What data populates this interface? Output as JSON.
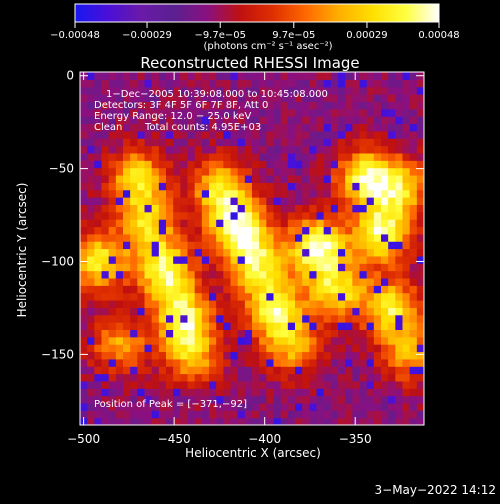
{
  "colorbar": {
    "tick_labels": [
      "−0.00048",
      "−0.00029",
      "−9.7e−05",
      "9.7e−05",
      "0.00029",
      "0.00048"
    ],
    "tick_values": [
      -0.00048,
      -0.00029,
      -9.7e-05,
      9.7e-05,
      0.00029,
      0.00048
    ],
    "range": [
      -0.00048,
      0.00048
    ],
    "unit_label": "(photons cm⁻² s⁻¹ asec⁻²)",
    "palette": [
      "#1818f0",
      "#4a10d8",
      "#6a1aa8",
      "#5a2090",
      "#8a1080",
      "#c01010",
      "#e03000",
      "#ff6a00",
      "#ffb000",
      "#ffe000",
      "#ffff40",
      "#ffffff"
    ]
  },
  "chart_data": {
    "type": "heatmap",
    "title": "Reconstructed RHESSI Image",
    "xlabel": "Heliocentric X (arcsec)",
    "ylabel": "Heliocentric Y (arcsec)",
    "xlim": [
      -502,
      -312
    ],
    "ylim": [
      -188,
      2
    ],
    "x_ticks": [
      -500,
      -450,
      -400,
      -350
    ],
    "x_tick_labels": [
      "−500",
      "−450",
      "−400",
      "−350"
    ],
    "y_ticks": [
      0,
      -50,
      -100,
      -150
    ],
    "y_tick_labels": [
      "0",
      "−50",
      "−100",
      "−150"
    ],
    "peak": [
      -371,
      -92
    ],
    "bright_regions": [
      {
        "x": -492,
        "y": -100,
        "level": 0.8
      },
      {
        "x": -480,
        "y": -145,
        "level": 0.55
      },
      {
        "x": -470,
        "y": -55,
        "level": 0.75
      },
      {
        "x": -465,
        "y": -80,
        "level": 0.7
      },
      {
        "x": -455,
        "y": -105,
        "level": 0.9
      },
      {
        "x": -445,
        "y": -130,
        "level": 0.85
      },
      {
        "x": -440,
        "y": -150,
        "level": 0.6
      },
      {
        "x": -425,
        "y": -60,
        "level": 0.7
      },
      {
        "x": -415,
        "y": -80,
        "level": 0.95
      },
      {
        "x": -405,
        "y": -100,
        "level": 0.8
      },
      {
        "x": -395,
        "y": -125,
        "level": 0.85
      },
      {
        "x": -385,
        "y": -145,
        "level": 0.6
      },
      {
        "x": -371,
        "y": -92,
        "level": 1.0
      },
      {
        "x": -360,
        "y": -115,
        "level": 0.75
      },
      {
        "x": -345,
        "y": -55,
        "level": 0.85
      },
      {
        "x": -335,
        "y": -85,
        "level": 0.9
      },
      {
        "x": -325,
        "y": -60,
        "level": 0.7
      },
      {
        "x": -330,
        "y": -125,
        "level": 0.8
      },
      {
        "x": -320,
        "y": -150,
        "level": 0.55
      }
    ],
    "annotations": {
      "time": "1−Dec−2005 10:39:08.000 to 10:45:08.000",
      "detectors": "Detectors: 3F 4F 5F 6F 7F 8F, Att 0",
      "energy": "Energy Range: 12.0 − 25.0 keV",
      "method": "Clean",
      "counts": "Total counts: 4.95E+03",
      "peak_label": "Position of Peak = [−371,−92]"
    }
  },
  "footer": {
    "date": "3−May−2022 14:12"
  }
}
